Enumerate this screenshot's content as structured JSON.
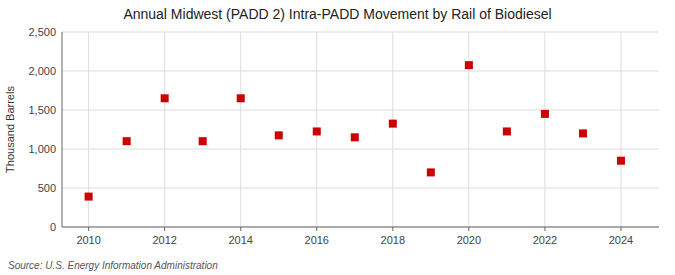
{
  "chart_data": {
    "type": "scatter",
    "title": "Annual Midwest (PADD 2) Intra-PADD Movement by Rail of Biodiesel",
    "y_label": "Thousand Barrels",
    "annotations": [
      "Source: U.S. Energy Information Administration"
    ],
    "x": [
      2010,
      2011,
      2012,
      2013,
      2014,
      2015,
      2016,
      2017,
      2018,
      2019,
      2020,
      2021,
      2022,
      2023,
      2024
    ],
    "values": [
      390,
      1100,
      1650,
      1100,
      1650,
      1175,
      1225,
      1150,
      1325,
      700,
      2075,
      1225,
      1450,
      1200,
      850
    ],
    "color": "#CC0000",
    "marker": "square",
    "xlim": [
      2009.3,
      2025.0
    ],
    "ylim": [
      0,
      2500
    ],
    "xticks": [
      2010,
      2012,
      2014,
      2016,
      2018,
      2020,
      2022,
      2024
    ],
    "yticks": [
      0,
      500,
      {
        "value": 1000,
        "label": "1,000"
      },
      {
        "value": 1500,
        "label": "1,500"
      },
      {
        "value": 2000,
        "label": "2,000"
      },
      {
        "value": 2500,
        "label": "2,500"
      }
    ],
    "grid": true
  }
}
